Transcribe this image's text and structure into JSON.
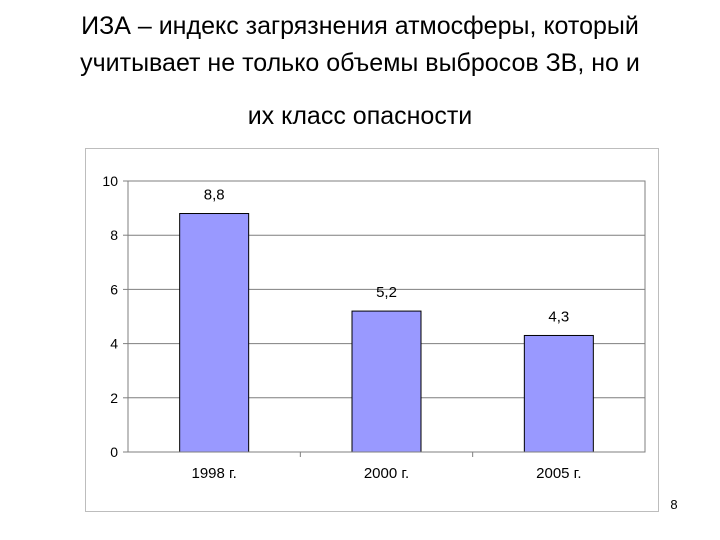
{
  "title": {
    "line1": "ИЗА – индекс загрязнения атмосферы, который",
    "line2": "учитывает не только объемы выбросов ЗВ, но и",
    "line3": "их класс опасности"
  },
  "slide_number": "8",
  "chart_data": {
    "type": "bar",
    "categories": [
      "1998 г.",
      "2000 г.",
      "2005 г."
    ],
    "values": [
      8.8,
      5.2,
      4.3
    ],
    "data_labels": [
      "8,8",
      "5,2",
      "4,3"
    ],
    "title": "",
    "xlabel": "",
    "ylabel": "",
    "ylim": [
      0,
      10
    ],
    "yticks": [
      0,
      2,
      4,
      6,
      8,
      10
    ],
    "grid": true,
    "legend": "none",
    "bar_color": "#9999ff",
    "bar_edge_color": "#000000",
    "grid_color": "#7f7f7f"
  }
}
